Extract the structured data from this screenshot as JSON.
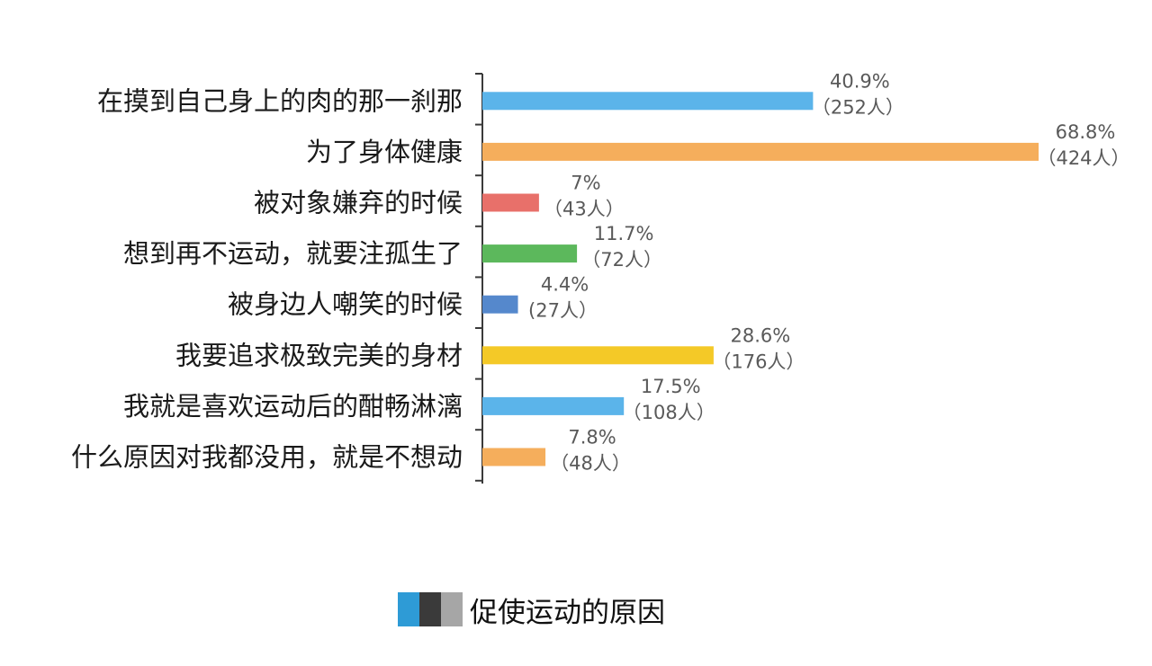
{
  "chart_data": {
    "type": "bar",
    "orientation": "horizontal",
    "categories": [
      "在摸到自己身上的肉的那一刹那",
      "为了身体健康",
      "被对象嫌弃的时候",
      "想到再不运动，就要注孤生了",
      "被身边人嘲笑的时候",
      "我要追求极致完美的身材",
      "我就是喜欢运动后的酣畅淋漓",
      "什么原因对我都没用，就是不想动"
    ],
    "values": [
      40.9,
      68.8,
      7,
      11.7,
      4.4,
      28.6,
      17.5,
      7.8
    ],
    "value_labels": [
      "40.9%",
      "68.8%",
      "7%",
      "11.7%",
      "4.4%",
      "28.6%",
      "17.5%",
      "7.8%"
    ],
    "count_labels": [
      "（252人）",
      "（424人）",
      "（43人）",
      "（72人）",
      "(27人）",
      "（176人）",
      "（108人）",
      "（48人）"
    ],
    "bar_colors": [
      "#5bb4ea",
      "#f5ae5c",
      "#e8706a",
      "#5cb85c",
      "#5588cc",
      "#f4c927",
      "#5bb4ea",
      "#f5ae5c"
    ],
    "xlim": [
      0,
      68.8
    ],
    "grid": false,
    "title": "",
    "xlabel": "",
    "ylabel": ""
  },
  "legend": {
    "title": "促使运动的原因",
    "swatch_colors": [
      "#2e9bd6",
      "#3a3a3a",
      "#a6a6a6"
    ]
  }
}
